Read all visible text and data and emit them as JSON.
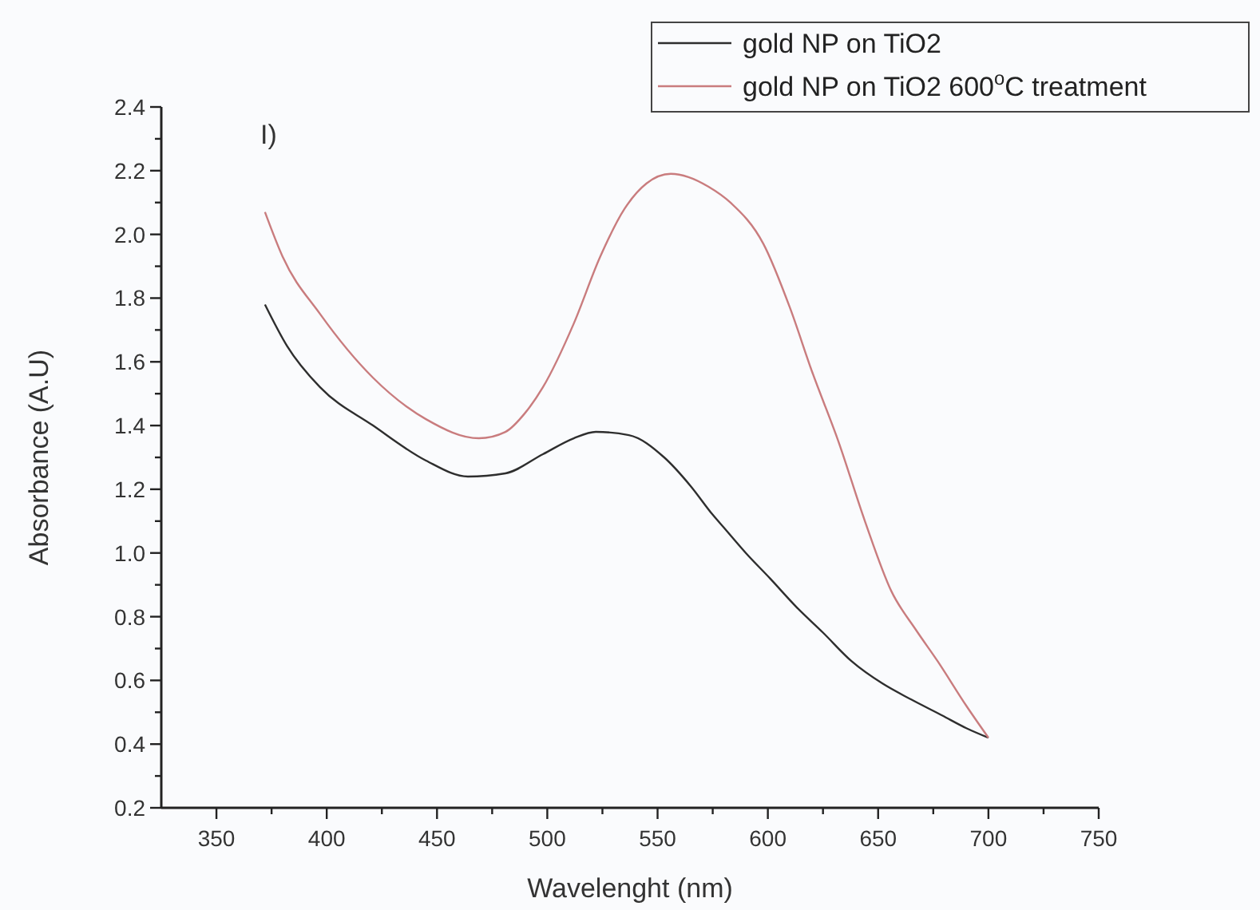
{
  "chart_data": {
    "type": "line",
    "xlabel": "Wavelenght (nm)",
    "ylabel": "Absorbance (A.U)",
    "annotations": [
      "I)"
    ],
    "xlim": [
      325,
      750
    ],
    "ylim": [
      0.2,
      2.4
    ],
    "xticks": [
      350,
      {
        "value": 375,
        "label": null
      },
      400,
      {
        "value": 425,
        "label": null
      },
      450,
      {
        "value": 475,
        "label": null
      },
      500,
      {
        "value": 525,
        "label": null
      },
      550,
      {
        "value": 575,
        "label": null
      },
      600,
      {
        "value": 625,
        "label": null
      },
      650,
      {
        "value": 675,
        "label": null
      },
      700,
      {
        "value": 725,
        "label": null
      },
      750
    ],
    "yticks": [
      {
        "value": 0.2,
        "label": "0.2"
      },
      {
        "value": 0.3,
        "label": null
      },
      {
        "value": 0.4,
        "label": "0.4"
      },
      {
        "value": 0.5,
        "label": null
      },
      {
        "value": 0.6,
        "label": "0.6"
      },
      {
        "value": 0.7,
        "label": null
      },
      {
        "value": 0.8,
        "label": "0.8"
      },
      {
        "value": 0.9,
        "label": null
      },
      {
        "value": 1.0,
        "label": "1.0"
      },
      {
        "value": 1.1,
        "label": null
      },
      {
        "value": 1.2,
        "label": "1.2"
      },
      {
        "value": 1.3,
        "label": null
      },
      {
        "value": 1.4,
        "label": "1.4"
      },
      {
        "value": 1.5,
        "label": null
      },
      {
        "value": 1.6,
        "label": "1.6"
      },
      {
        "value": 1.7,
        "label": null
      },
      {
        "value": 1.8,
        "label": "1.8"
      },
      {
        "value": 1.9,
        "label": null
      },
      {
        "value": 2.0,
        "label": "2.0"
      },
      {
        "value": 2.1,
        "label": null
      },
      {
        "value": 2.2,
        "label": "2.2"
      },
      {
        "value": 2.3,
        "label": null
      },
      {
        "value": 2.4,
        "label": "2.4"
      }
    ],
    "grid": false,
    "legend": "top right",
    "marker": "none",
    "line_style": "solid",
    "series": [
      {
        "name": "gold NP on TiO2",
        "color": "#2e2e2e",
        "x": [
          372,
          382,
          397,
          421,
          445,
          464,
          481,
          498,
          512,
          522,
          537,
          553,
          565,
          575,
          580,
          590,
          601,
          613,
          625,
          638,
          652,
          665,
          679,
          690,
          700
        ],
        "values": [
          1.78,
          1.65,
          1.52,
          1.4,
          1.29,
          1.24,
          1.25,
          1.31,
          1.36,
          1.38,
          1.37,
          1.3,
          1.21,
          1.12,
          1.08,
          1.0,
          0.92,
          0.83,
          0.75,
          0.66,
          0.59,
          0.54,
          0.49,
          0.45,
          0.42
        ]
      },
      {
        "name": "gold NP on TiO2 600$^{o}$C treatment",
        "color": "#c97c7e",
        "x": [
          372,
          380,
          397,
          421,
          445,
          469,
          481,
          490,
          498,
          512,
          524,
          535,
          545,
          556,
          564,
          573,
          583,
          598,
          610,
          620,
          632,
          644,
          656,
          667,
          677,
          690,
          700
        ],
        "values": [
          2.07,
          1.93,
          1.75,
          1.55,
          1.42,
          1.36,
          1.38,
          1.44,
          1.52,
          1.72,
          1.93,
          2.08,
          2.16,
          2.19,
          2.18,
          2.15,
          2.1,
          1.97,
          1.77,
          1.57,
          1.35,
          1.1,
          0.88,
          0.76,
          0.66,
          0.52,
          0.42
        ]
      }
    ]
  }
}
